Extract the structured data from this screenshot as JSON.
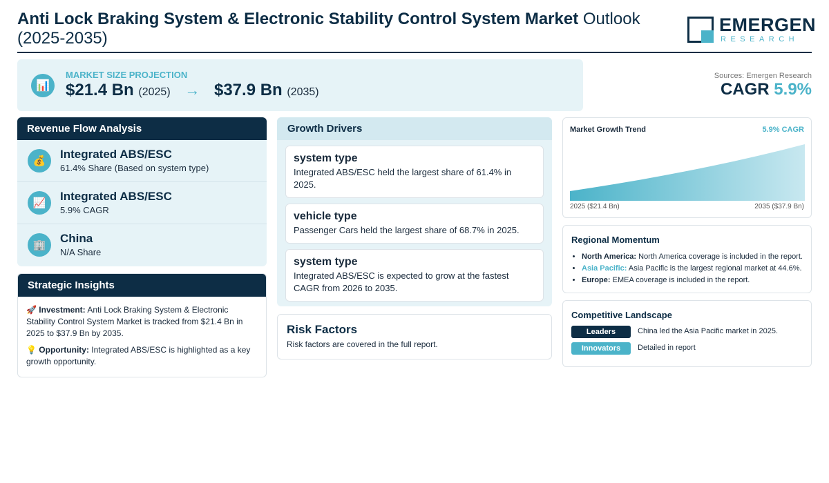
{
  "header": {
    "title_bold": "Anti Lock Braking System & Electronic Stability Control System Market",
    "title_rest": " Outlook (2025-2035)"
  },
  "logo": {
    "name": "EMERGEN",
    "sub": "RESEARCH"
  },
  "projection": {
    "icon": "bar-chart-icon",
    "label": "MARKET SIZE PROJECTION",
    "start_value": "$21.4 Bn",
    "start_year": "(2025)",
    "arrow": "→",
    "end_value": "$37.9 Bn",
    "end_year": "(2035)"
  },
  "sources": "Sources: Emergen Research",
  "cagr": {
    "label": "CAGR",
    "value": "5.9%"
  },
  "revenue": {
    "title": "Revenue Flow Analysis",
    "items": [
      {
        "icon": "money-bag-icon",
        "glyph": "💰",
        "title": "Integrated ABS/ESC",
        "sub": "61.4% Share (Based on system type)"
      },
      {
        "icon": "trend-chart-icon",
        "glyph": "📈",
        "title": "Integrated ABS/ESC",
        "sub": "5.9% CAGR"
      },
      {
        "icon": "building-icon",
        "glyph": "🏢",
        "title": "China",
        "sub": "N/A Share"
      }
    ]
  },
  "insights": {
    "title": "Strategic Insights",
    "items": [
      {
        "glyph": "🚀",
        "label": "Investment:",
        "text": " Anti Lock Braking System & Electronic Stability Control System Market is tracked from $21.4 Bn in 2025 to $37.9 Bn by 2035."
      },
      {
        "glyph": "💡",
        "label": "Opportunity:",
        "text": " Integrated ABS/ESC is highlighted as a key growth opportunity."
      }
    ]
  },
  "drivers": {
    "title": "Growth Drivers",
    "items": [
      {
        "title": "system type",
        "text": "Integrated ABS/ESC held the largest share of 61.4% in 2025."
      },
      {
        "title": "vehicle type",
        "text": "Passenger Cars held the largest share of 68.7% in 2025."
      },
      {
        "title": "system type",
        "text": "Integrated ABS/ESC is expected to grow at the fastest CAGR from 2026 to 2035."
      }
    ]
  },
  "risk": {
    "title": "Risk Factors",
    "text": "Risk factors are covered in the full report."
  },
  "trend": {
    "title": "Market Growth Trend",
    "cagr": "5.9% CAGR",
    "x_start": "2025 ($21.4 Bn)",
    "x_end": "2035 ($37.9 Bn)"
  },
  "chart_data": {
    "type": "area",
    "x": [
      "2025",
      "2035"
    ],
    "values": [
      21.4,
      37.9
    ],
    "title": "Market Growth Trend"
  },
  "region": {
    "title": "Regional Momentum",
    "items": [
      {
        "label": "North America:",
        "text": " North America coverage is included in the report."
      },
      {
        "label": "Asia Pacific:",
        "text": " Asia Pacific is the largest regional market at 44.6%."
      },
      {
        "label": "Europe:",
        "text": " EMEA coverage is included in the report."
      }
    ]
  },
  "competitive": {
    "title": "Competitive Landscape",
    "rows": [
      {
        "badge": "Leaders",
        "text": "China led the Asia Pacific market in 2025.",
        "color": "#0d2d45"
      },
      {
        "badge": "Innovators",
        "text": "Detailed in report",
        "color": "#4bb3c9"
      }
    ]
  },
  "colors": {
    "navy": "#0d2d45",
    "accent": "#4bb3c9",
    "panel": "#e6f3f7"
  }
}
